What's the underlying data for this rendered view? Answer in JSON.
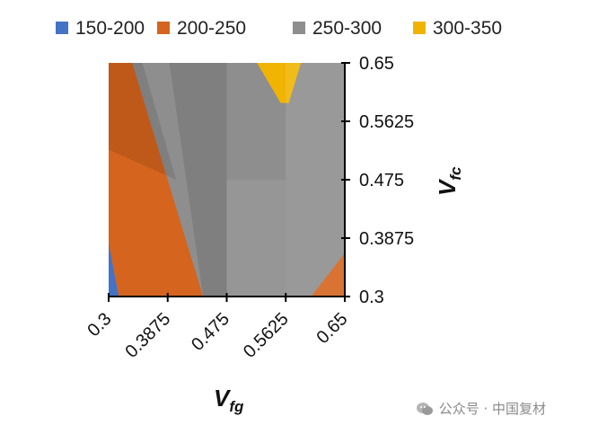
{
  "chart_data": {
    "type": "area",
    "subtype": "contour-surface",
    "title": "",
    "xlabel": "V_fg",
    "ylabel": "V_fc",
    "x_ticks": [
      "0.3",
      "0.3875",
      "0.475",
      "0.5625",
      "0.65"
    ],
    "y_ticks": [
      "0.3",
      "0.3875",
      "0.475",
      "0.5625",
      "0.65"
    ],
    "xlim": [
      0.3,
      0.65
    ],
    "ylim": [
      0.3,
      0.65
    ],
    "y_axis_position": "right",
    "legend_position": "top",
    "grid": false,
    "series": [
      {
        "name": "150-200",
        "color": "#4472c4"
      },
      {
        "name": "200-250",
        "color": "#d4641e"
      },
      {
        "name": "250-300",
        "color": "#8e8e8e"
      },
      {
        "name": "300-350",
        "color": "#f0b400"
      }
    ],
    "regions": [
      {
        "band": "150-200",
        "polygon": [
          [
            0.3,
            0.3
          ],
          [
            0.3,
            0.38
          ],
          [
            0.315,
            0.3
          ]
        ]
      },
      {
        "band": "200-250",
        "polygon": [
          [
            0.3,
            0.38
          ],
          [
            0.3,
            0.65
          ],
          [
            0.335,
            0.65
          ],
          [
            0.44,
            0.3
          ],
          [
            0.315,
            0.3
          ]
        ]
      },
      {
        "band": "250-300",
        "polygon": [
          [
            0.335,
            0.65
          ],
          [
            0.52,
            0.65
          ],
          [
            0.555,
            0.59
          ],
          [
            0.567,
            0.59
          ],
          [
            0.585,
            0.65
          ],
          [
            0.65,
            0.65
          ],
          [
            0.65,
            0.365
          ],
          [
            0.6,
            0.3
          ],
          [
            0.44,
            0.3
          ]
        ]
      },
      {
        "band": "300-350",
        "polygon": [
          [
            0.52,
            0.65
          ],
          [
            0.585,
            0.65
          ],
          [
            0.567,
            0.59
          ],
          [
            0.555,
            0.59
          ]
        ]
      },
      {
        "band": "200-250",
        "polygon": [
          [
            0.6,
            0.3
          ],
          [
            0.65,
            0.3
          ],
          [
            0.65,
            0.365
          ]
        ]
      }
    ]
  },
  "watermark": {
    "text": "公众号 · 中国复材",
    "icon": "wechat-icon"
  }
}
